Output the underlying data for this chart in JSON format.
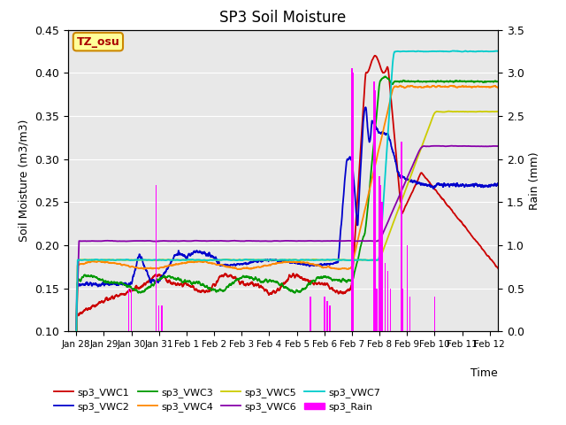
{
  "title": "SP3 Soil Moisture",
  "xlabel": "Time",
  "ylabel_left": "Soil Moisture (m3/m3)",
  "ylabel_right": "Rain (mm)",
  "annotation": "TZ_osu",
  "ylim_left": [
    0.1,
    0.45
  ],
  "ylim_right": [
    0.0,
    3.5
  ],
  "xtick_labels": [
    "Jan 28",
    "Jan 29",
    "Jan 30",
    "Jan 31",
    "Feb 1",
    "Feb 2",
    "Feb 3",
    "Feb 4",
    "Feb 5",
    "Feb 6",
    "Feb 7",
    "Feb 8",
    "Feb 9",
    "Feb 10",
    "Feb 11",
    "Feb 12"
  ],
  "xtick_positions": [
    0,
    1,
    2,
    3,
    4,
    5,
    6,
    7,
    8,
    9,
    10,
    11,
    12,
    13,
    14,
    15
  ],
  "colors": {
    "vwc1": "#cc0000",
    "vwc2": "#0000cc",
    "vwc3": "#009900",
    "vwc4": "#ff8800",
    "vwc5": "#cccc00",
    "vwc6": "#8800aa",
    "vwc7": "#00cccc",
    "rain": "#ff00ff"
  },
  "legend_entries": [
    "sp3_VWC1",
    "sp3_VWC2",
    "sp3_VWC3",
    "sp3_VWC4",
    "sp3_VWC5",
    "sp3_VWC6",
    "sp3_VWC7",
    "sp3_Rain"
  ],
  "bg_color": "#e8e8e8",
  "fig_bg": "#ffffff",
  "annotation_bg": "#ffff99",
  "annotation_edge": "#cc8800",
  "annotation_text_color": "#aa0000"
}
